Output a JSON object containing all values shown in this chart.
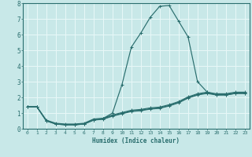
{
  "title": "",
  "xlabel": "Humidex (Indice chaleur)",
  "ylabel": "",
  "xlim": [
    -0.5,
    23.5
  ],
  "ylim": [
    0,
    8
  ],
  "xticks": [
    0,
    1,
    2,
    3,
    4,
    5,
    6,
    7,
    8,
    9,
    10,
    11,
    12,
    13,
    14,
    15,
    16,
    17,
    18,
    19,
    20,
    21,
    22,
    23
  ],
  "yticks": [
    0,
    1,
    2,
    3,
    4,
    5,
    6,
    7,
    8
  ],
  "line_color": "#2a6e6e",
  "bg_color": "#c8e8e8",
  "grid_color": "#e8f8f8",
  "lines": [
    {
      "x": [
        0,
        1,
        2,
        3,
        4,
        5,
        6,
        7,
        8,
        9,
        10,
        11,
        12,
        13,
        14,
        15,
        16,
        17,
        18,
        19,
        20,
        21,
        22,
        23
      ],
      "y": [
        1.4,
        1.4,
        0.5,
        0.3,
        0.25,
        0.25,
        0.3,
        0.55,
        0.6,
        0.8,
        0.95,
        1.1,
        1.15,
        1.25,
        1.3,
        1.45,
        1.65,
        1.95,
        2.15,
        2.25,
        2.15,
        2.15,
        2.25,
        2.25
      ]
    },
    {
      "x": [
        0,
        1,
        2,
        3,
        4,
        5,
        6,
        7,
        8,
        9,
        10,
        11,
        12,
        13,
        14,
        15,
        16,
        17,
        18,
        19,
        20,
        21,
        22,
        23
      ],
      "y": [
        1.4,
        1.4,
        0.52,
        0.32,
        0.27,
        0.27,
        0.32,
        0.57,
        0.63,
        0.83,
        0.98,
        1.13,
        1.18,
        1.28,
        1.33,
        1.48,
        1.68,
        1.98,
        2.18,
        2.28,
        2.18,
        2.18,
        2.28,
        2.28
      ]
    },
    {
      "x": [
        0,
        1,
        2,
        3,
        4,
        5,
        6,
        7,
        8,
        9,
        10,
        11,
        12,
        13,
        14,
        15,
        16,
        17,
        18,
        19,
        20,
        21,
        22,
        23
      ],
      "y": [
        1.4,
        1.4,
        0.55,
        0.35,
        0.3,
        0.3,
        0.35,
        0.62,
        0.67,
        0.88,
        1.03,
        1.18,
        1.23,
        1.33,
        1.38,
        1.53,
        1.73,
        2.03,
        2.23,
        2.33,
        2.23,
        2.23,
        2.33,
        2.33
      ]
    },
    {
      "x": [
        0,
        1,
        2,
        3,
        4,
        5,
        6,
        7,
        8,
        9,
        10,
        11,
        12,
        13,
        14,
        15,
        16,
        17,
        18,
        19,
        20,
        21,
        22,
        23
      ],
      "y": [
        1.4,
        1.4,
        0.5,
        0.3,
        0.25,
        0.25,
        0.3,
        0.55,
        0.65,
        1.0,
        2.8,
        5.2,
        6.1,
        7.1,
        7.8,
        7.85,
        6.85,
        5.85,
        3.0,
        2.35,
        2.15,
        2.15,
        2.25,
        2.25
      ]
    }
  ]
}
